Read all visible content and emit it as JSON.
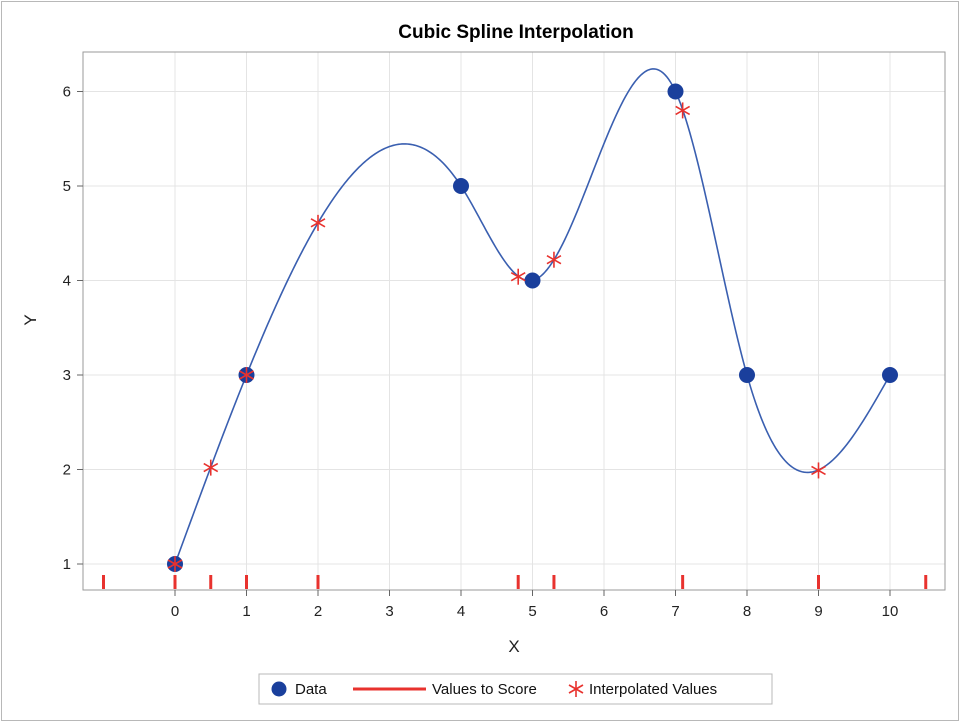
{
  "chart_data": {
    "type": "line",
    "title": "Cubic Spline Interpolation",
    "xlabel": "X",
    "ylabel": "Y",
    "xlim": [
      -1,
      10.7
    ],
    "ylim": [
      0.75,
      6.4
    ],
    "xticks": [
      0,
      1,
      2,
      3,
      4,
      5,
      6,
      7,
      8,
      9,
      10
    ],
    "yticks": [
      1,
      2,
      3,
      4,
      5,
      6
    ],
    "x_tick_labels": [
      "0",
      "1",
      "2",
      "3",
      "4",
      "5",
      "6",
      "7",
      "8",
      "9",
      "10"
    ],
    "y_tick_labels": [
      "1",
      "2",
      "3",
      "4",
      "5",
      "6"
    ],
    "grid": true,
    "legend_position": "bottom",
    "series": [
      {
        "name": "Data",
        "kind": "marker-circle",
        "color": "#1a3f9c",
        "x": [
          0,
          1,
          4,
          5,
          7,
          8,
          10
        ],
        "y": [
          1,
          3,
          5,
          4,
          6,
          3,
          3
        ]
      },
      {
        "name": "Values to Score",
        "kind": "rug",
        "color": "#e8322e",
        "x": [
          -1,
          0,
          0.5,
          1,
          2,
          4.8,
          5.3,
          7.1,
          9,
          10.5
        ]
      },
      {
        "name": "Interpolated Values",
        "kind": "marker-star",
        "color": "#e8322e",
        "x": [
          0,
          0.5,
          1,
          2,
          4.8,
          5.3,
          7.1,
          9
        ],
        "y": [
          1,
          2.02,
          3,
          4.61,
          4.04,
          4.22,
          5.8,
          1.99
        ]
      }
    ],
    "spline_color": "#3a5fb0"
  }
}
